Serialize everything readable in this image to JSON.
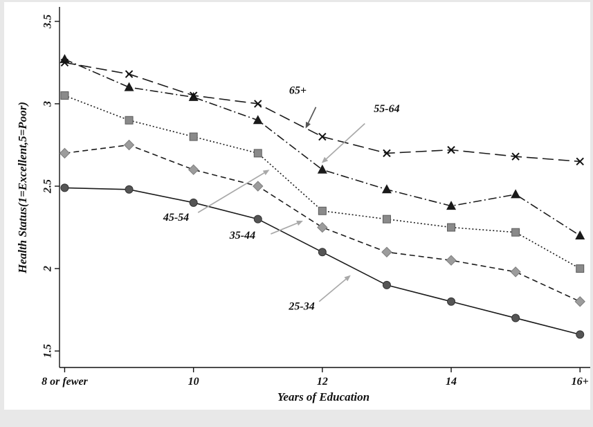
{
  "chart_data": {
    "type": "line",
    "title": "",
    "xlabel": "Years of Education",
    "ylabel": "Health Status(1=Excellent,5=Poor)",
    "x": [
      8,
      9,
      10,
      11,
      12,
      13,
      14,
      15,
      16
    ],
    "x_tick_values": [
      8,
      10,
      12,
      14,
      16
    ],
    "x_tick_labels": [
      "8 or fewer",
      "10",
      "12",
      "14",
      "16+"
    ],
    "y_ticks": [
      1.5,
      2,
      2.5,
      3,
      3.5
    ],
    "y_tick_labels": [
      "1.5",
      "2",
      "2.5",
      "3",
      "3.5"
    ],
    "xlim": [
      7.92,
      16.18
    ],
    "ylim": [
      1.4,
      3.575
    ],
    "grid": false,
    "legend_position": "none (inline annotations with arrows)",
    "axis_color": "#111111",
    "series": [
      {
        "name": "25-34",
        "marker": "circle",
        "marker_color": "#555555",
        "line_color": "#1a1a1a",
        "line_dash": "none",
        "values": [
          2.49,
          2.48,
          2.4,
          2.3,
          2.1,
          1.9,
          1.8,
          1.7,
          1.6
        ]
      },
      {
        "name": "35-44",
        "marker": "diamond",
        "marker_color": "#9c9c9c",
        "line_color": "#1a1a1a",
        "line_dash": "8 5",
        "values": [
          2.7,
          2.75,
          2.6,
          2.5,
          2.25,
          2.1,
          2.05,
          1.98,
          1.8
        ]
      },
      {
        "name": "45-54",
        "marker": "square",
        "marker_color": "#8a8a8a",
        "line_color": "#1a1a1a",
        "line_dash": "2 3",
        "values": [
          3.05,
          2.9,
          2.8,
          2.7,
          2.35,
          2.3,
          2.25,
          2.22,
          2.0
        ]
      },
      {
        "name": "55-64",
        "marker": "triangle",
        "marker_color": "#1a1a1a",
        "line_color": "#1a1a1a",
        "line_dash": "12 4 2 4",
        "values": [
          3.27,
          3.1,
          3.04,
          2.9,
          2.6,
          2.48,
          2.38,
          2.45,
          2.2
        ]
      },
      {
        "name": "65+",
        "marker": "x",
        "marker_color": "#111111",
        "line_color": "#1a1a1a",
        "line_dash": "16 7",
        "values": [
          3.25,
          3.18,
          3.05,
          3.0,
          2.8,
          2.7,
          2.72,
          2.68,
          2.65
        ]
      }
    ],
    "annotations": [
      {
        "label": "65+",
        "text_x": 11.62,
        "text_y": 3.06,
        "arrow_from_x": 11.9,
        "arrow_from_y": 2.98,
        "arrow_to_x": 11.74,
        "arrow_to_y": 2.85,
        "color": "#555555"
      },
      {
        "label": "55-64",
        "text_x": 13.0,
        "text_y": 2.95,
        "arrow_from_x": 12.66,
        "arrow_from_y": 2.88,
        "arrow_to_x": 11.99,
        "arrow_to_y": 2.64,
        "color": "#a9a9a9"
      },
      {
        "label": "45-54",
        "text_x": 9.73,
        "text_y": 2.29,
        "arrow_from_x": 10.07,
        "arrow_from_y": 2.34,
        "arrow_to_x": 11.18,
        "arrow_to_y": 2.6,
        "color": "#a9a9a9"
      },
      {
        "label": "35-44",
        "text_x": 10.76,
        "text_y": 2.18,
        "arrow_from_x": 11.2,
        "arrow_from_y": 2.21,
        "arrow_to_x": 11.7,
        "arrow_to_y": 2.29,
        "color": "#a9a9a9"
      },
      {
        "label": "25-34",
        "text_x": 11.68,
        "text_y": 1.75,
        "arrow_from_x": 11.95,
        "arrow_from_y": 1.8,
        "arrow_to_x": 12.44,
        "arrow_to_y": 1.96,
        "color": "#a9a9a9"
      }
    ]
  }
}
